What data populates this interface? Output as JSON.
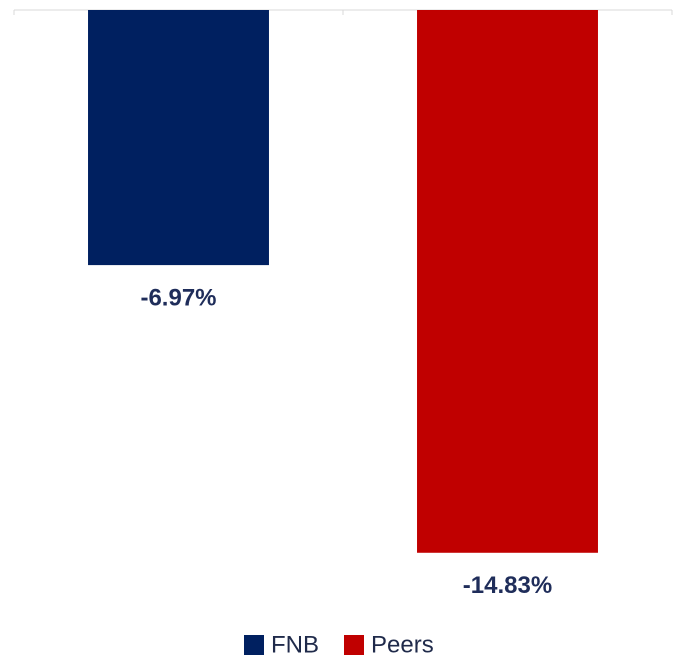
{
  "chart_data": {
    "type": "bar",
    "categories": [
      null,
      null
    ],
    "series": [
      {
        "name": "FNB",
        "color": "#002060",
        "values": [
          -6.97,
          null
        ],
        "value_labels": [
          "-6.97%",
          null
        ]
      },
      {
        "name": "Peers",
        "color": "#c00000",
        "values": [
          null,
          -14.83
        ],
        "value_labels": [
          null,
          "-14.83%"
        ]
      }
    ],
    "ylim": [
      -15,
      0
    ],
    "legend": "bottom"
  }
}
